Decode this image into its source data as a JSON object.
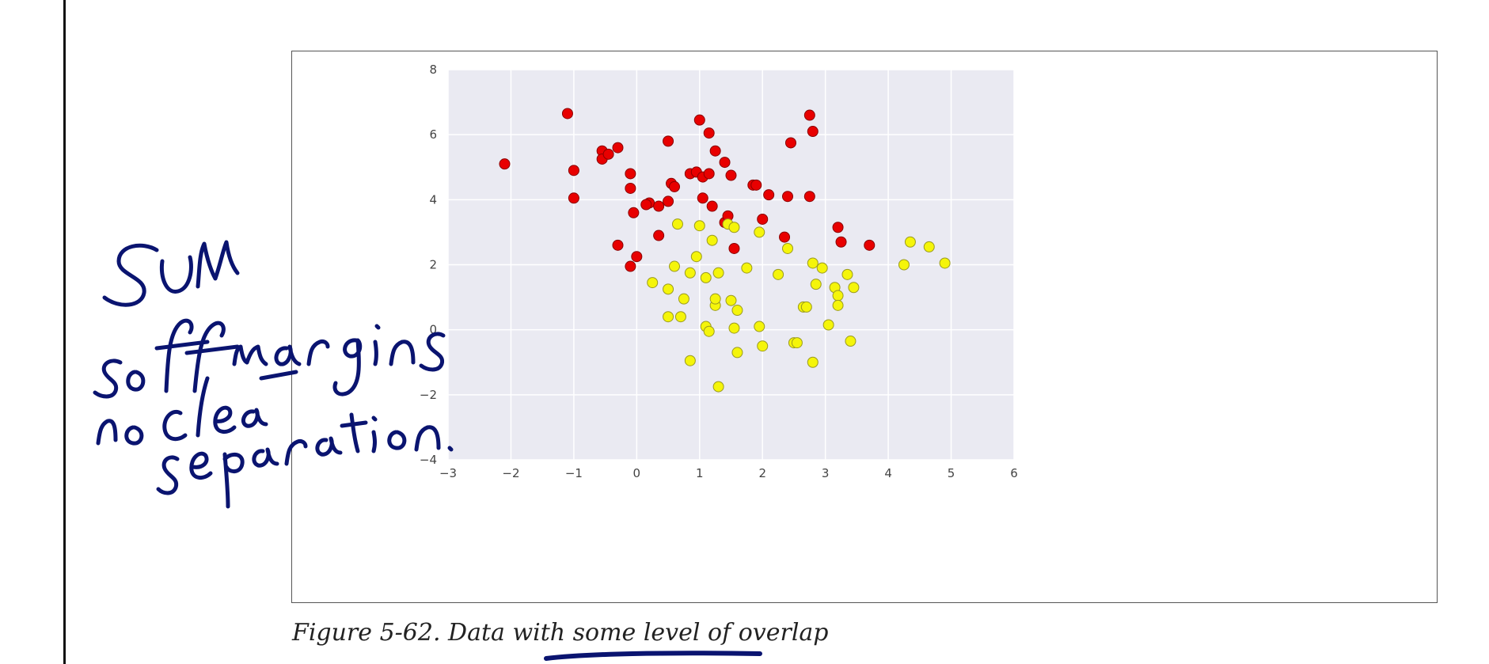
{
  "caption": "Figure 5-62. Data with some level of overlap",
  "handwritten_note": "SVM soft margins no clear separation.",
  "colors": {
    "plot_bg": "#eaeaf2",
    "grid": "#ffffff",
    "class_a": "#e80000",
    "class_b": "#f5f50a",
    "ink": "#0a1470"
  },
  "chart_data": {
    "type": "scatter",
    "title": "",
    "xlabel": "",
    "ylabel": "",
    "xlim": [
      -3,
      6
    ],
    "ylim": [
      -4,
      8
    ],
    "xticks": [
      -3,
      -2,
      -1,
      0,
      1,
      2,
      3,
      4,
      5,
      6
    ],
    "yticks": [
      -4,
      -2,
      0,
      2,
      4,
      6,
      8
    ],
    "grid": true,
    "series": [
      {
        "color": "#e80000",
        "points": [
          [
            -2.1,
            5.1
          ],
          [
            -1.1,
            6.65
          ],
          [
            -1.0,
            4.9
          ],
          [
            -1.0,
            4.05
          ],
          [
            -0.55,
            5.5
          ],
          [
            -0.55,
            5.25
          ],
          [
            -0.45,
            5.4
          ],
          [
            -0.3,
            5.6
          ],
          [
            -0.3,
            2.6
          ],
          [
            -0.1,
            4.8
          ],
          [
            -0.1,
            4.35
          ],
          [
            -0.05,
            3.6
          ],
          [
            -0.1,
            1.95
          ],
          [
            0.0,
            2.25
          ],
          [
            0.2,
            3.9
          ],
          [
            0.15,
            3.85
          ],
          [
            0.35,
            3.8
          ],
          [
            0.35,
            2.9
          ],
          [
            0.5,
            5.8
          ],
          [
            0.5,
            3.95
          ],
          [
            0.55,
            4.5
          ],
          [
            0.6,
            4.4
          ],
          [
            0.85,
            4.8
          ],
          [
            0.95,
            4.85
          ],
          [
            1.0,
            6.45
          ],
          [
            1.05,
            4.05
          ],
          [
            1.05,
            4.7
          ],
          [
            1.15,
            4.8
          ],
          [
            1.15,
            6.05
          ],
          [
            1.2,
            3.8
          ],
          [
            1.25,
            5.5
          ],
          [
            1.4,
            3.3
          ],
          [
            1.4,
            5.15
          ],
          [
            1.45,
            3.5
          ],
          [
            1.5,
            4.75
          ],
          [
            1.55,
            2.5
          ],
          [
            1.85,
            4.45
          ],
          [
            1.9,
            4.45
          ],
          [
            2.0,
            3.4
          ],
          [
            2.1,
            4.15
          ],
          [
            2.35,
            2.85
          ],
          [
            2.4,
            4.1
          ],
          [
            2.45,
            5.75
          ],
          [
            2.75,
            6.6
          ],
          [
            2.75,
            4.1
          ],
          [
            2.8,
            6.1
          ],
          [
            3.2,
            3.15
          ],
          [
            3.25,
            2.7
          ],
          [
            3.7,
            2.6
          ]
        ]
      },
      {
        "color": "#f5f50a",
        "points": [
          [
            0.25,
            1.45
          ],
          [
            0.5,
            0.4
          ],
          [
            0.5,
            1.25
          ],
          [
            0.6,
            1.95
          ],
          [
            0.65,
            3.25
          ],
          [
            0.7,
            0.4
          ],
          [
            0.75,
            0.95
          ],
          [
            0.85,
            1.75
          ],
          [
            0.85,
            -0.95
          ],
          [
            0.95,
            2.25
          ],
          [
            1.0,
            3.2
          ],
          [
            1.1,
            0.1
          ],
          [
            1.1,
            1.6
          ],
          [
            1.15,
            -0.05
          ],
          [
            1.2,
            2.75
          ],
          [
            1.25,
            0.75
          ],
          [
            1.25,
            0.95
          ],
          [
            1.3,
            1.75
          ],
          [
            1.3,
            -1.75
          ],
          [
            1.45,
            3.25
          ],
          [
            1.5,
            0.9
          ],
          [
            1.55,
            3.15
          ],
          [
            1.55,
            0.05
          ],
          [
            1.6,
            0.6
          ],
          [
            1.6,
            -0.7
          ],
          [
            1.75,
            1.9
          ],
          [
            1.95,
            3.0
          ],
          [
            1.95,
            0.1
          ],
          [
            2.0,
            -0.5
          ],
          [
            2.25,
            1.7
          ],
          [
            2.4,
            2.5
          ],
          [
            2.5,
            -0.4
          ],
          [
            2.55,
            -0.4
          ],
          [
            2.65,
            0.7
          ],
          [
            2.7,
            0.7
          ],
          [
            2.8,
            2.05
          ],
          [
            2.8,
            -1.0
          ],
          [
            2.85,
            1.4
          ],
          [
            2.95,
            1.9
          ],
          [
            3.05,
            0.15
          ],
          [
            3.15,
            1.3
          ],
          [
            3.2,
            1.05
          ],
          [
            3.2,
            0.75
          ],
          [
            3.35,
            1.7
          ],
          [
            3.4,
            -0.35
          ],
          [
            3.45,
            1.3
          ],
          [
            4.25,
            2.0
          ],
          [
            4.35,
            2.7
          ],
          [
            4.65,
            2.55
          ],
          [
            4.9,
            2.05
          ]
        ]
      }
    ]
  }
}
